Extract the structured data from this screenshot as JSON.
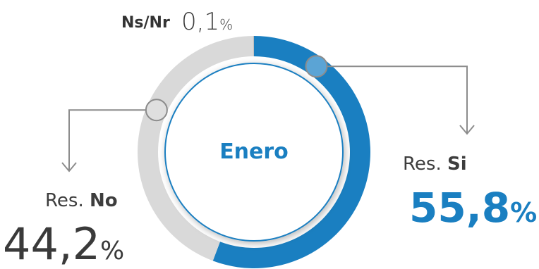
{
  "chart_data": {
    "type": "pie",
    "variant": "donut",
    "center_label": "Enero",
    "slices": [
      {
        "key": "si",
        "prefix": "Res.",
        "label": "Si",
        "value": 55.8,
        "display": "55,8",
        "unit": "%",
        "color": "#1a7fc1"
      },
      {
        "key": "no",
        "prefix": "Res.",
        "label": "No",
        "value": 44.2,
        "display": "44,2",
        "unit": "%",
        "color": "#d9d9d9"
      },
      {
        "key": "nsnr",
        "prefix": "",
        "label": "Ns/Nr",
        "value": 0.1,
        "display": "0,1",
        "unit": "%",
        "color": "#bdbdbd"
      }
    ]
  }
}
